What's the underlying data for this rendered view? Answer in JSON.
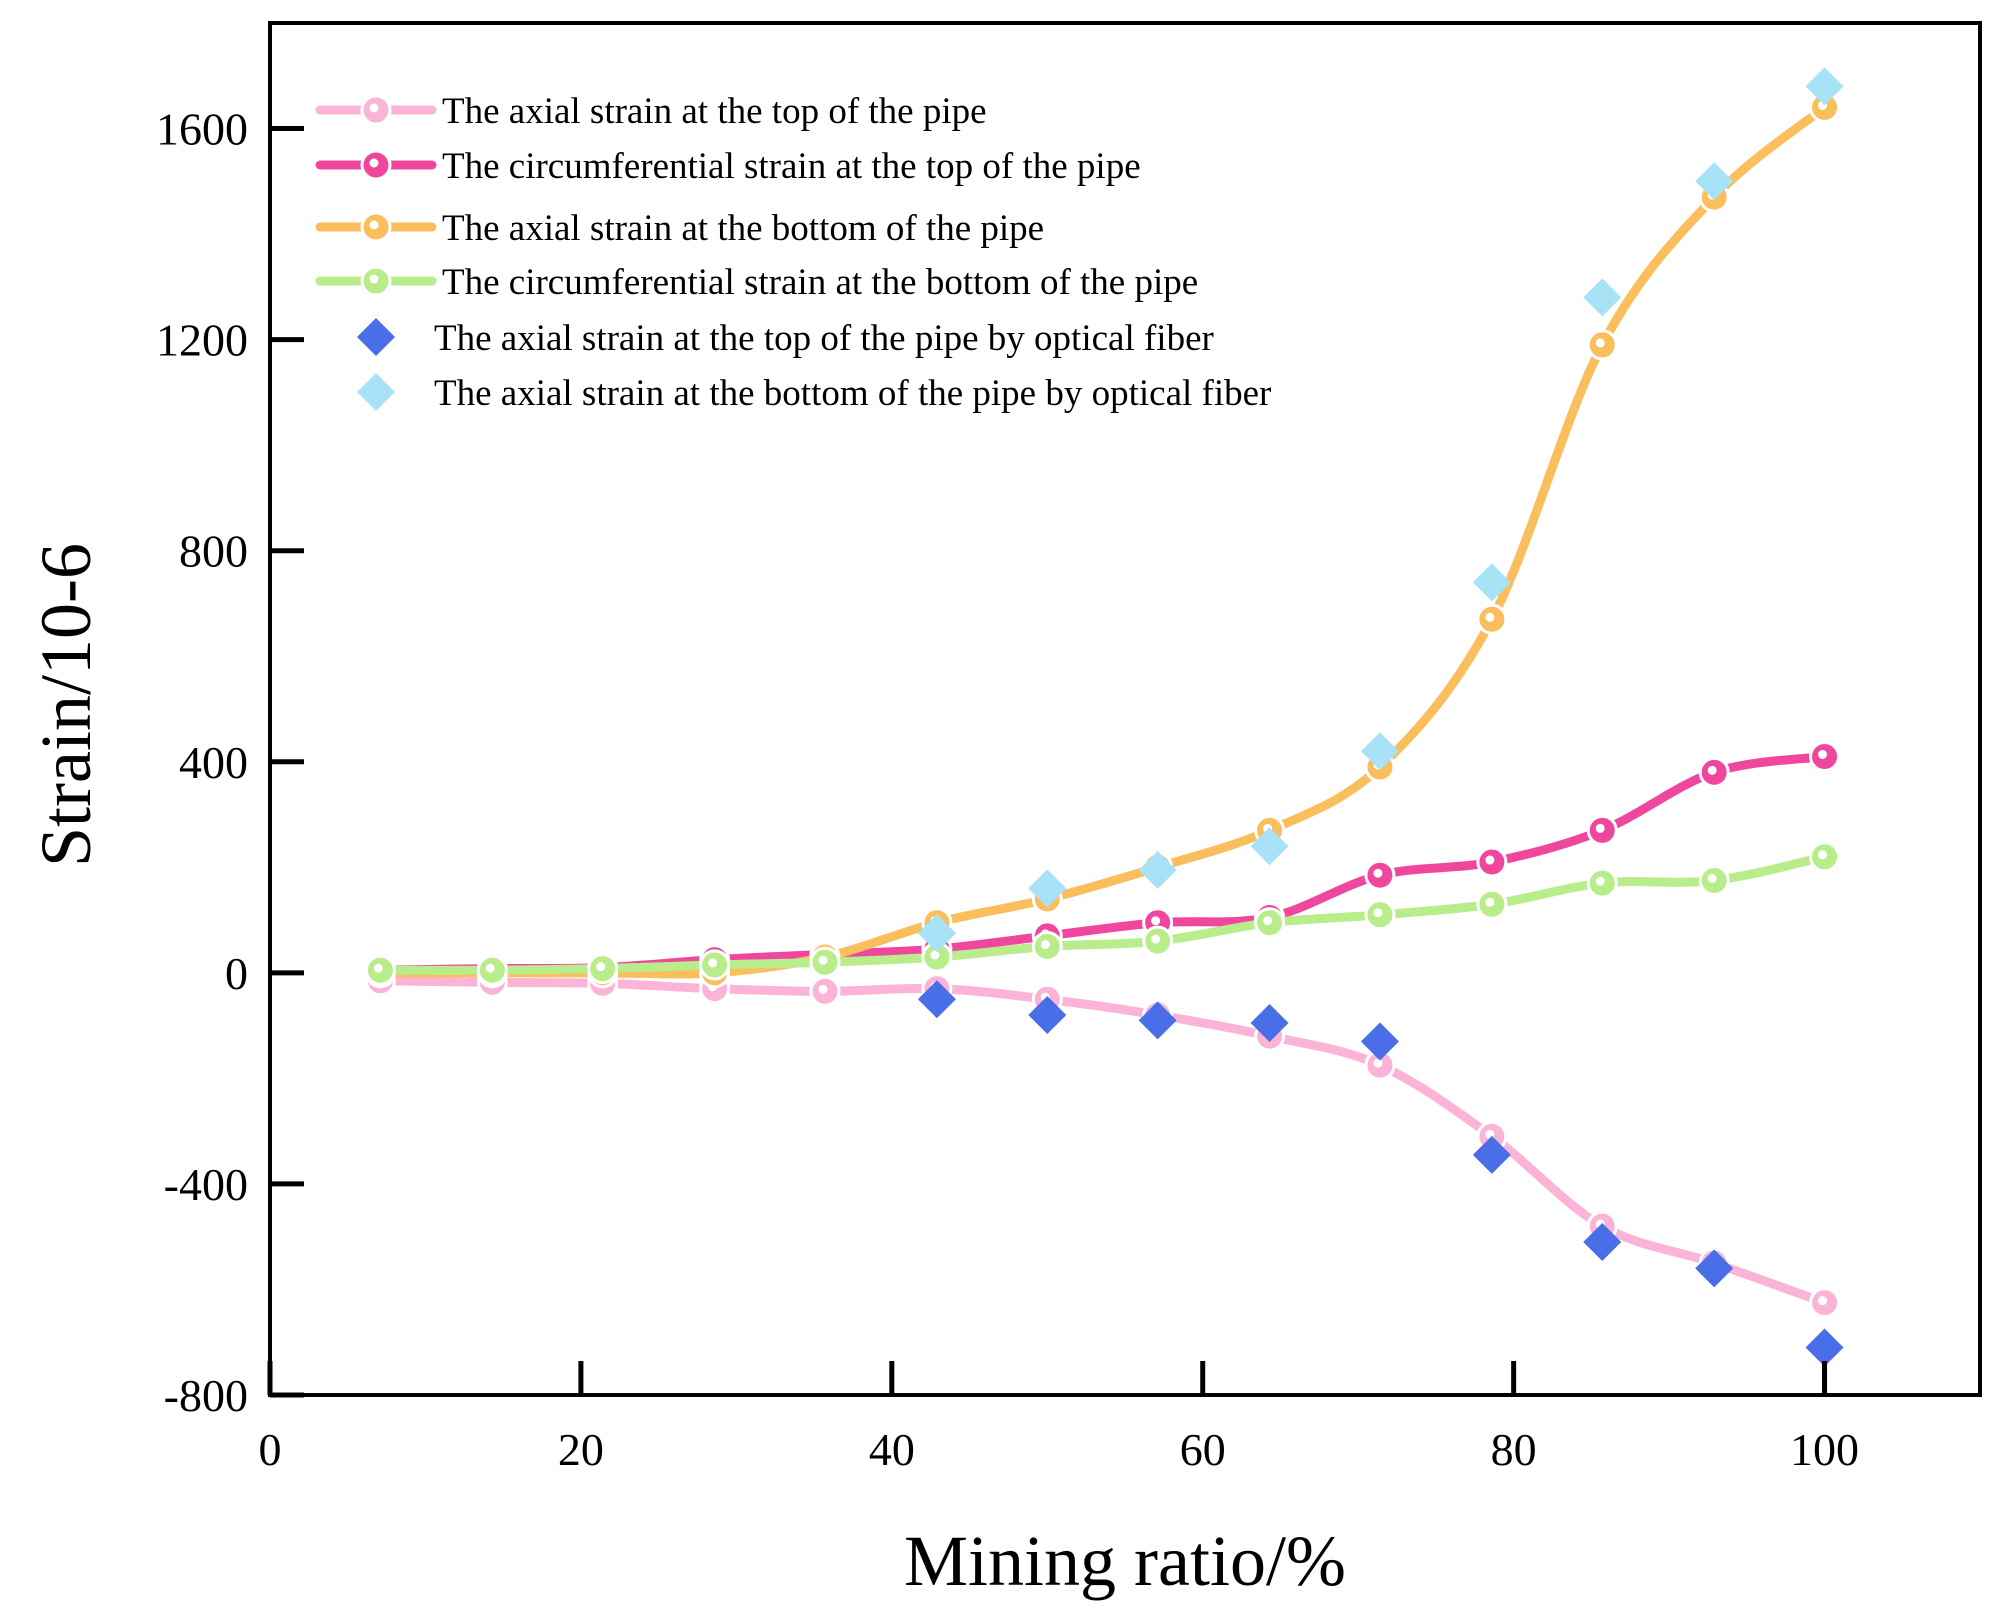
{
  "chart_data": {
    "type": "line",
    "title": "",
    "xlabel": "Mining ratio/%",
    "ylabel": "Strain/10-6",
    "xlim": [
      0,
      110
    ],
    "ylim": [
      -800,
      1800
    ],
    "xticks": [
      0,
      20,
      40,
      60,
      80,
      100
    ],
    "yticks": [
      -800,
      -400,
      0,
      400,
      800,
      1200,
      1600
    ],
    "xtick_labels": [
      "0",
      "20",
      "40",
      "60",
      "80",
      "100"
    ],
    "ytick_labels": [
      "-800",
      "-400",
      "0",
      "400",
      "800",
      "1200",
      "1600"
    ],
    "grid": false,
    "legend_position": "top-left",
    "series": [
      {
        "name": "The axial strain at the top of the pipe",
        "kind": "line",
        "color": "#fbb4d8",
        "x": [
          7.1,
          14.3,
          21.4,
          28.6,
          35.7,
          42.9,
          50,
          57.1,
          64.3,
          71.4,
          78.6,
          85.7,
          92.9,
          100
        ],
        "y": [
          -15,
          -18,
          -20,
          -30,
          -35,
          -30,
          -50,
          -80,
          -120,
          -175,
          -310,
          -480,
          -550,
          -625
        ]
      },
      {
        "name": "The circumferential strain at the top of the pipe",
        "kind": "line",
        "color": "#f0479e",
        "x": [
          7.1,
          14.3,
          21.4,
          28.6,
          35.7,
          42.9,
          50,
          57.1,
          64.3,
          71.4,
          78.6,
          85.7,
          92.9,
          100
        ],
        "y": [
          5,
          8,
          10,
          25,
          35,
          45,
          70,
          95,
          105,
          185,
          210,
          270,
          380,
          410
        ]
      },
      {
        "name": "The axial strain at the bottom of the pipe",
        "kind": "line",
        "color": "#fbbe5c",
        "x": [
          7.1,
          14.3,
          21.4,
          28.6,
          35.7,
          42.9,
          50,
          57.1,
          64.3,
          71.4,
          78.6,
          85.7,
          92.9,
          100
        ],
        "y": [
          0,
          0,
          0,
          0,
          30,
          95,
          140,
          200,
          270,
          390,
          670,
          1190,
          1470,
          1640
        ]
      },
      {
        "name": "The circumferential strain at the bottom of the pipe",
        "kind": "line",
        "color": "#b9ec8a",
        "x": [
          7.1,
          14.3,
          21.4,
          28.6,
          35.7,
          42.9,
          50,
          57.1,
          64.3,
          71.4,
          78.6,
          85.7,
          92.9,
          100
        ],
        "y": [
          5,
          5,
          8,
          15,
          20,
          30,
          50,
          60,
          95,
          110,
          130,
          170,
          175,
          220
        ]
      },
      {
        "name": "The axial strain at the top of the pipe by optical fiber",
        "kind": "scatter",
        "color": "#4a6ee8",
        "x": [
          42.9,
          50,
          57.1,
          64.3,
          71.4,
          78.6,
          85.7,
          92.9,
          100
        ],
        "y": [
          -50,
          -80,
          -90,
          -95,
          -130,
          -345,
          -510,
          -560,
          -710
        ]
      },
      {
        "name": "The axial strain at the bottom of the pipe by optical fiber",
        "kind": "scatter",
        "color": "#a7e2f7",
        "x": [
          42.9,
          50,
          57.1,
          64.3,
          71.4,
          78.6,
          85.7,
          92.9,
          100
        ],
        "y": [
          75,
          160,
          195,
          240,
          420,
          740,
          1280,
          1500,
          1680
        ]
      }
    ]
  }
}
